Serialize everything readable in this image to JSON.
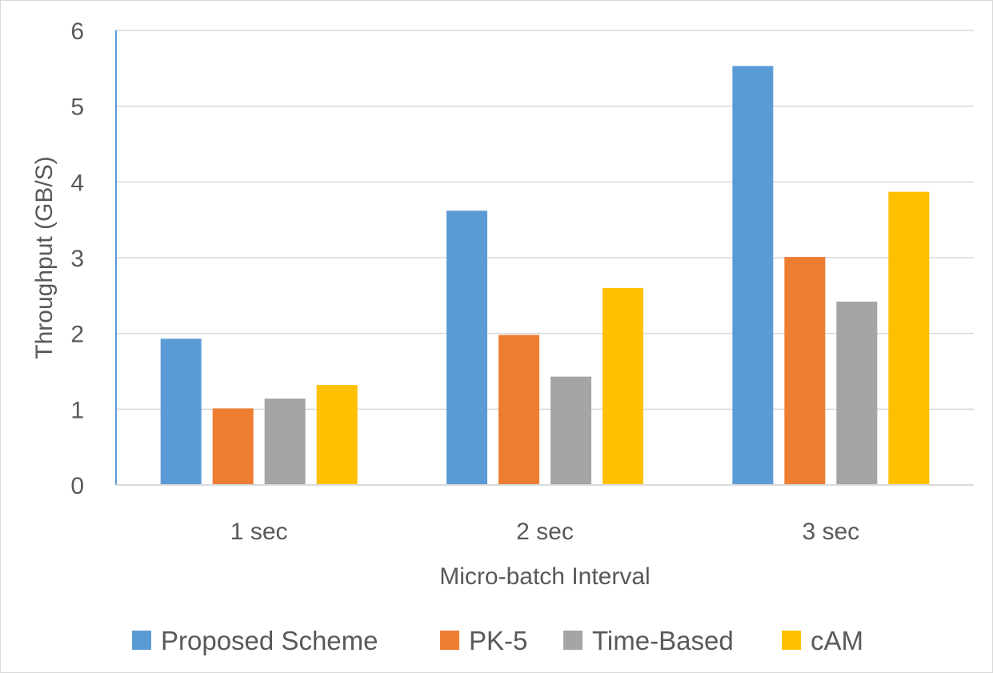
{
  "chart_data": {
    "type": "bar",
    "title": "",
    "xlabel": "Micro-batch Interval",
    "ylabel": "Throughput (GB/S)",
    "ylim": [
      0,
      6
    ],
    "yticks": [
      0,
      1,
      2,
      3,
      4,
      5,
      6
    ],
    "categories": [
      "1 sec",
      "2 sec",
      "3 sec"
    ],
    "series": [
      {
        "name": "Proposed Scheme",
        "color": "#5b9bd5",
        "values": [
          1.93,
          3.62,
          5.53
        ]
      },
      {
        "name": "PK-5",
        "color": "#ed7d31",
        "values": [
          1.01,
          1.98,
          3.01
        ]
      },
      {
        "name": "Time-Based",
        "color": "#a5a5a5",
        "values": [
          1.14,
          1.43,
          2.42
        ]
      },
      {
        "name": "cAM",
        "color": "#ffc000",
        "values": [
          1.32,
          2.6,
          3.87
        ]
      }
    ],
    "grid": true,
    "legend_position": "bottom"
  }
}
